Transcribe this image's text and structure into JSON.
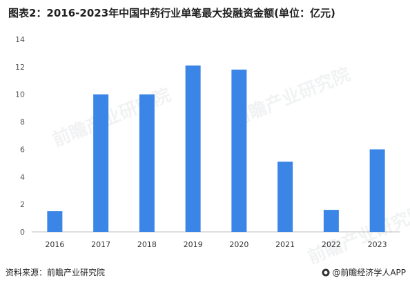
{
  "title": "图表2：2016-2023年中国中药行业单笔最大投融资金额(单位：亿元)",
  "footer": {
    "source": "资料来源：前瞻产业研究院",
    "brand": "@前瞻经济学人APP"
  },
  "watermark": "前瞻产业研究院",
  "colors": {
    "bar": "#3A85E6",
    "axis": "#BFBFBF"
  },
  "chart_data": {
    "type": "bar",
    "title": "图表2：2016-2023年中国中药行业单笔最大投融资金额(单位：亿元)",
    "categories": [
      "2016",
      "2017",
      "2018",
      "2019",
      "2020",
      "2021",
      "2022",
      "2023"
    ],
    "values": [
      1.5,
      10,
      10,
      12.1,
      11.8,
      5.1,
      1.6,
      6.0
    ],
    "ylim": [
      0,
      14
    ],
    "yticks": [
      "0",
      "2",
      "4",
      "6",
      "8",
      "10",
      "12",
      "14"
    ],
    "xlabel": "",
    "ylabel": "",
    "grid": false,
    "legend": "none"
  }
}
